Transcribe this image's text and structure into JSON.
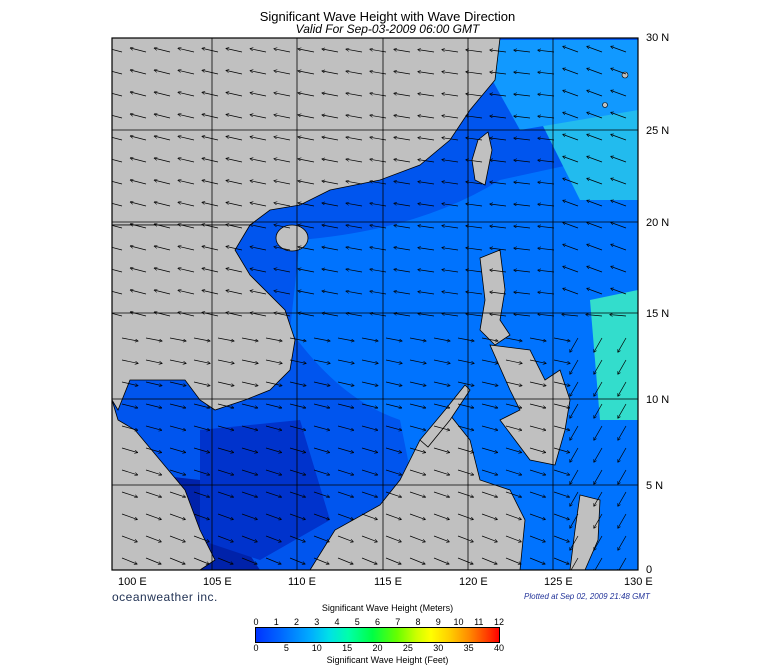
{
  "header": {
    "title": "Significant Wave Height with Wave Direction",
    "subtitle": "Valid For Sep-03-2009 06:00 GMT"
  },
  "map": {
    "lat_labels": [
      "30 N",
      "25 N",
      "20 N",
      "15 N",
      "10 N",
      "5 N",
      "0"
    ],
    "lon_labels": [
      "100 E",
      "105 E",
      "110 E",
      "115 E",
      "120 E",
      "125 E",
      "130 E"
    ],
    "land_color": "#c0c0c0",
    "ocean_colors": [
      "#0a1a80",
      "#0033cc",
      "#0055ee",
      "#0077ff",
      "#1199ff",
      "#22bbee",
      "#33ddcc"
    ]
  },
  "footer": {
    "brand": "oceanweather inc.",
    "plotted": "Plotted at Sep 02, 2009 21:48 GMT"
  },
  "colorbar": {
    "title_meters": "Significant Wave Height (Meters)",
    "title_feet": "Significant Wave Height (Feet)",
    "meter_ticks": [
      "0",
      "1",
      "2",
      "3",
      "4",
      "5",
      "6",
      "7",
      "8",
      "9",
      "10",
      "11",
      "12"
    ],
    "feet_ticks": [
      "0",
      "5",
      "10",
      "15",
      "20",
      "25",
      "30",
      "35",
      "40"
    ]
  }
}
